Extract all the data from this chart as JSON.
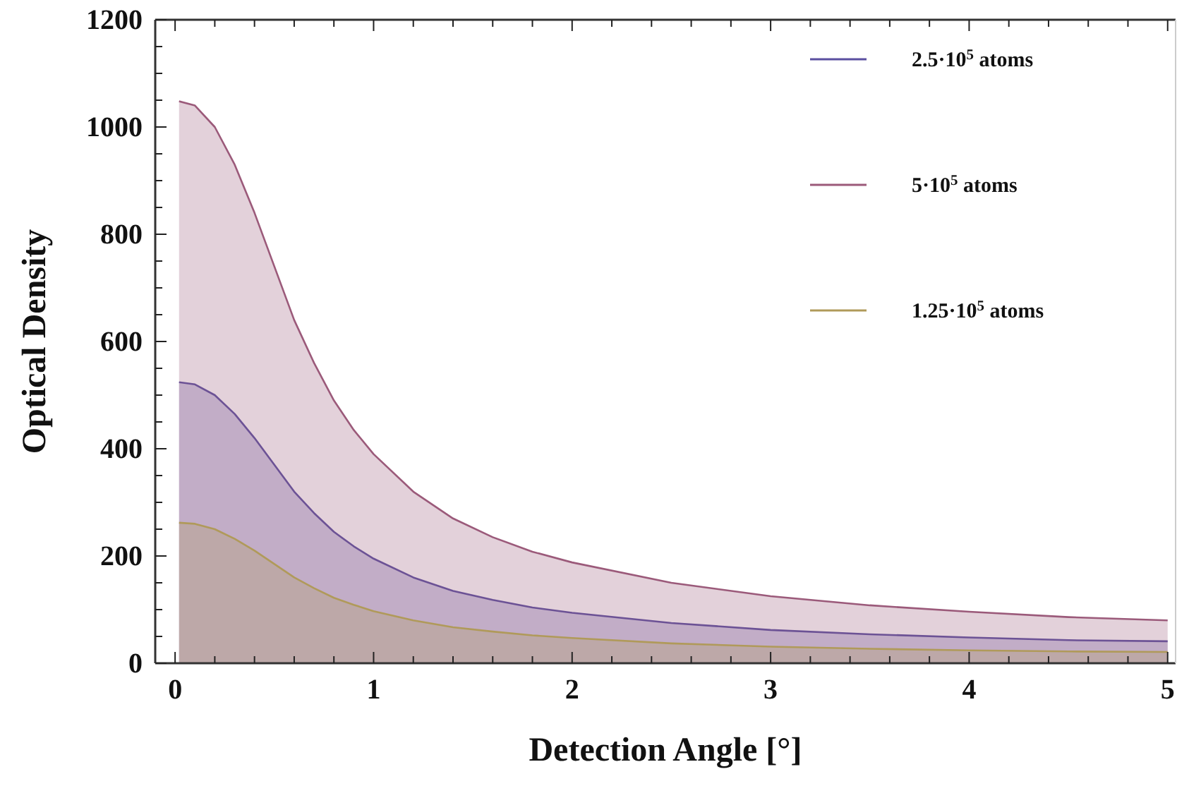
{
  "chart_data": {
    "type": "area",
    "xlabel": "Detection Angle [°]",
    "ylabel": "Optical Density",
    "x": [
      0.02,
      0.1,
      0.2,
      0.3,
      0.4,
      0.5,
      0.6,
      0.7,
      0.8,
      0.9,
      1.0,
      1.2,
      1.4,
      1.6,
      1.8,
      2.0,
      2.5,
      3.0,
      3.5,
      4.0,
      4.5,
      5.0
    ],
    "series": [
      {
        "name": "2.5·10$^{5}$ atoms",
        "color": "#5a4fa0",
        "values": [
          524,
          520,
          500,
          465,
          420,
          370,
          320,
          280,
          245,
          218,
          195,
          160,
          135,
          118,
          104,
          94,
          75,
          62,
          54,
          48,
          43,
          41
        ]
      },
      {
        "name": "5·10$^{5}$ atoms",
        "color": "#9b5a7a",
        "values": [
          1048,
          1040,
          1000,
          930,
          840,
          740,
          640,
          560,
          490,
          435,
          390,
          320,
          270,
          235,
          208,
          188,
          150,
          125,
          108,
          96,
          86,
          80
        ]
      },
      {
        "name": "1.25·10$^{5}$ atoms",
        "color": "#b09a5a",
        "values": [
          262,
          260,
          250,
          232,
          210,
          185,
          160,
          140,
          122,
          109,
          97,
          80,
          67,
          59,
          52,
          47,
          37,
          31,
          27,
          24,
          22,
          21
        ]
      }
    ],
    "xlim": [
      -0.1,
      5.04
    ],
    "ylim": [
      0,
      1200
    ],
    "xticks": [
      0,
      {
        "value": 0.2,
        "label": null
      },
      {
        "value": 0.4,
        "label": null
      },
      {
        "value": 0.6,
        "label": null
      },
      {
        "value": 0.8,
        "label": null
      },
      1,
      {
        "value": 1.2,
        "label": null
      },
      {
        "value": 1.4,
        "label": null
      },
      {
        "value": 1.6,
        "label": null
      },
      {
        "value": 1.8,
        "label": null
      },
      2,
      {
        "value": 2.2,
        "label": null
      },
      {
        "value": 2.4,
        "label": null
      },
      {
        "value": 2.6,
        "label": null
      },
      {
        "value": 2.8,
        "label": null
      },
      3,
      {
        "value": 3.2,
        "label": null
      },
      {
        "value": 3.4,
        "label": null
      },
      {
        "value": 3.6,
        "label": null
      },
      {
        "value": 3.8,
        "label": null
      },
      4,
      {
        "value": 4.2,
        "label": null
      },
      {
        "value": 4.4,
        "label": null
      },
      {
        "value": 4.6,
        "label": null
      },
      {
        "value": 4.8,
        "label": null
      },
      5
    ],
    "yticks": [
      0,
      {
        "value": 50,
        "label": null
      },
      {
        "value": 100,
        "label": null
      },
      {
        "value": 150,
        "label": null
      },
      200,
      {
        "value": 250,
        "label": null
      },
      {
        "value": 300,
        "label": null
      },
      {
        "value": 350,
        "label": null
      },
      400,
      {
        "value": 450,
        "label": null
      },
      {
        "value": 500,
        "label": null
      },
      {
        "value": 550,
        "label": null
      },
      600,
      {
        "value": 650,
        "label": null
      },
      {
        "value": 700,
        "label": null
      },
      {
        "value": 750,
        "label": null
      },
      800,
      {
        "value": 850,
        "label": null
      },
      {
        "value": 900,
        "label": null
      },
      {
        "value": 950,
        "label": null
      },
      1000,
      {
        "value": 1050,
        "label": null
      },
      {
        "value": 1100,
        "label": null
      },
      {
        "value": 1150,
        "label": null
      },
      1200
    ],
    "legend": "top right",
    "grid": false
  }
}
